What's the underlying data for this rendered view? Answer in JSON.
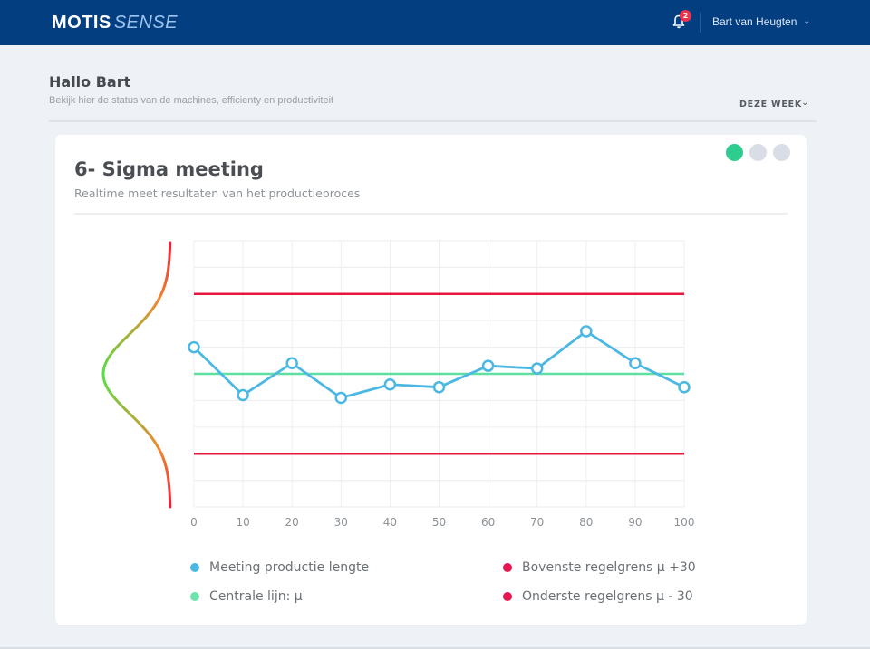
{
  "header": {
    "logo_bold": "MOTIS",
    "logo_light": "SENSE",
    "notifications_count": "2",
    "user_name": "Bart van Heugten",
    "brand_color": "#033f80"
  },
  "page": {
    "greeting": "Hallo Bart",
    "subtitle": "Bekijk hier de status van de machines, efficienty en productiviteit",
    "period_selector": "DEZE WEEK"
  },
  "card": {
    "title": "6- Sigma meeting",
    "subtitle": "Realtime meet resultaten van het productieproces",
    "pager": [
      {
        "active": true,
        "color": "#2ecc8e"
      },
      {
        "active": false,
        "color": "#d9dde6"
      },
      {
        "active": false,
        "color": "#d9dde6"
      }
    ]
  },
  "chart_data": {
    "type": "line",
    "title": "6- Sigma meeting",
    "xlabel": "",
    "ylabel": "",
    "x": [
      0,
      10,
      20,
      30,
      40,
      50,
      60,
      70,
      80,
      90,
      100
    ],
    "x_ticks": [
      "0",
      "10",
      "20",
      "30",
      "40",
      "50",
      "60",
      "70",
      "80",
      "90",
      "100"
    ],
    "xlim": [
      0,
      100
    ],
    "ylim": [
      0,
      10
    ],
    "y_grid_step": 1,
    "grid": true,
    "series": [
      {
        "name": "Meeting productie lengte",
        "color": "#4bb8e3",
        "values": [
          6.0,
          4.2,
          5.4,
          4.1,
          4.6,
          4.5,
          5.3,
          5.2,
          6.6,
          5.4,
          4.5
        ],
        "markers": "open-circle"
      }
    ],
    "reference_lines": [
      {
        "name": "Bovenste regelgrens μ +30",
        "value": 8,
        "color": "#e8153c"
      },
      {
        "name": "Centrale lijn: μ",
        "value": 5,
        "color": "#5fe0a2"
      },
      {
        "name": "Onderste regelgrens μ - 30",
        "value": 2,
        "color": "#e8153c"
      }
    ],
    "distribution_curve": "normal curve, colored green at center to red at tails, drawn left of the axis",
    "legend": [
      {
        "label": "Meeting productie lengte",
        "color": "#4bb8e3"
      },
      {
        "label": "Centrale lijn: μ",
        "color": "#6ee3ad"
      },
      {
        "label": "Bovenste regelgrens μ +30",
        "color": "#e8154f"
      },
      {
        "label": "Onderste regelgrens μ - 30",
        "color": "#e8154f"
      }
    ],
    "legend_position": "bottom"
  }
}
